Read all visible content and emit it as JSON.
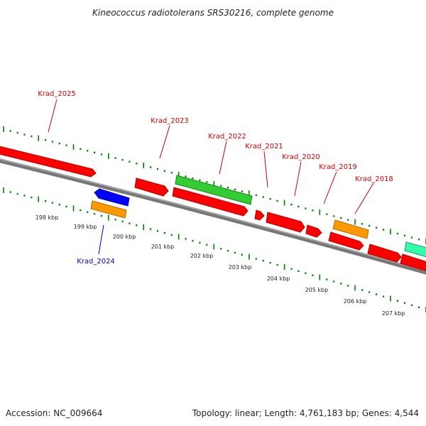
{
  "title": "Kineococcus radiotolerans SRS30216, complete genome",
  "footer": {
    "accession": "Accession: NC_009664",
    "summary": "Topology: linear; Length: 4,761,183 bp; Genes: 4,544"
  },
  "ruler": {
    "ticks": [
      "198 kbp",
      "199 kbp",
      "200 kbp",
      "201 kbp",
      "202 kbp",
      "203 kbp",
      "204 kbp",
      "205 kbp",
      "206 kbp",
      "207 kbp"
    ]
  },
  "genes": [
    {
      "label": "Krad_2025",
      "color": "#cc0000"
    },
    {
      "label": "Krad_2024",
      "color": "#0000cc"
    },
    {
      "label": "Krad_2023",
      "color": "#cc0000"
    },
    {
      "label": "Krad_2022",
      "color": "#cc0000"
    },
    {
      "label": "Krad_2021",
      "color": "#cc0000"
    },
    {
      "label": "Krad_2020",
      "color": "#cc0000"
    },
    {
      "label": "Krad_2019",
      "color": "#cc0000"
    },
    {
      "label": "Krad_2018",
      "color": "#cc0000"
    }
  ],
  "colors": {
    "backbone": "#808080",
    "tick": "#008000",
    "cds_red": "#ff0000",
    "cds_green": "#33cc33",
    "cds_orange": "#ff9900",
    "cds_blue": "#0000ff",
    "cds_teal": "#33ffaa"
  }
}
